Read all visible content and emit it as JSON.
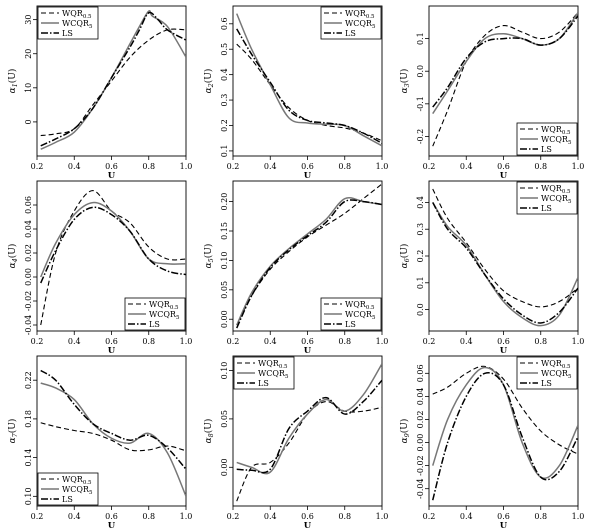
{
  "chart_data": [
    {
      "type": "line",
      "xlabel": "U",
      "ylabel": "α",
      "ylabel_sub": "1",
      "ylabel_suffix": "(U)",
      "xlim": [
        0.2,
        1.0
      ],
      "ylim": [
        -10,
        34
      ],
      "xticks": [
        0.2,
        0.4,
        0.6,
        0.8,
        1.0
      ],
      "xtick_labels": [
        "0.2",
        "0.4",
        "0.6",
        "0.8",
        "1.0"
      ],
      "yticks": [
        0,
        10,
        20,
        30
      ],
      "ytick_labels": [
        "0",
        "10",
        "20",
        "30"
      ],
      "legend_position": "top-left",
      "series": [
        {
          "name": "WQR",
          "sub": "0.5",
          "style": "dashed",
          "color": "#000000",
          "x": [
            0.22,
            0.3,
            0.4,
            0.5,
            0.6,
            0.7,
            0.8,
            0.9,
            1.0
          ],
          "y": [
            -4,
            -3.5,
            -2,
            5,
            12,
            19,
            24,
            27,
            27
          ]
        },
        {
          "name": "WCQR",
          "sub": "5",
          "style": "solid",
          "color": "#777777",
          "x": [
            0.22,
            0.3,
            0.4,
            0.5,
            0.6,
            0.7,
            0.75,
            0.8,
            0.82,
            0.9,
            1.0
          ],
          "y": [
            -8,
            -6,
            -3,
            4,
            13,
            23,
            28,
            32.5,
            31,
            28,
            19
          ]
        },
        {
          "name": "LS",
          "style": "dashdot",
          "color": "#000000",
          "x": [
            0.22,
            0.3,
            0.4,
            0.5,
            0.6,
            0.7,
            0.75,
            0.8,
            0.85,
            0.9,
            1.0
          ],
          "y": [
            -7,
            -5,
            -2,
            4,
            13,
            22,
            27,
            32,
            30,
            27,
            24
          ]
        }
      ]
    },
    {
      "type": "line",
      "xlabel": "U",
      "ylabel": "α",
      "ylabel_sub": "2",
      "ylabel_suffix": "(U)",
      "xlim": [
        0.2,
        1.0
      ],
      "ylim": [
        0.08,
        0.67
      ],
      "xticks": [
        0.2,
        0.4,
        0.6,
        0.8,
        1.0
      ],
      "xtick_labels": [
        "0.2",
        "0.4",
        "0.6",
        "0.8",
        "1.0"
      ],
      "yticks": [
        0.1,
        0.2,
        0.3,
        0.4,
        0.5,
        0.6
      ],
      "ytick_labels": [
        "0.1",
        "0.2",
        "0.3",
        "0.4",
        "0.5",
        "0.6"
      ],
      "legend_position": "top-right",
      "series": [
        {
          "name": "WQR",
          "sub": "0.5",
          "style": "dashed",
          "color": "#000000",
          "x": [
            0.22,
            0.3,
            0.4,
            0.5,
            0.6,
            0.7,
            0.8,
            0.9,
            1.0
          ],
          "y": [
            0.52,
            0.46,
            0.36,
            0.27,
            0.22,
            0.2,
            0.19,
            0.17,
            0.14
          ]
        },
        {
          "name": "WCQR",
          "sub": "5",
          "style": "solid",
          "color": "#777777",
          "x": [
            0.22,
            0.3,
            0.4,
            0.5,
            0.6,
            0.7,
            0.8,
            0.9,
            1.0
          ],
          "y": [
            0.64,
            0.5,
            0.36,
            0.23,
            0.21,
            0.205,
            0.2,
            0.16,
            0.12
          ]
        },
        {
          "name": "LS",
          "style": "dashdot",
          "color": "#000000",
          "x": [
            0.22,
            0.3,
            0.4,
            0.5,
            0.6,
            0.7,
            0.8,
            0.9,
            1.0
          ],
          "y": [
            0.58,
            0.48,
            0.37,
            0.26,
            0.22,
            0.21,
            0.2,
            0.17,
            0.13
          ]
        }
      ]
    },
    {
      "type": "line",
      "xlabel": "U",
      "ylabel": "α",
      "ylabel_sub": "3",
      "ylabel_suffix": "(U)",
      "xlim": [
        0.2,
        1.0
      ],
      "ylim": [
        -0.26,
        0.2
      ],
      "xticks": [
        0.2,
        0.4,
        0.6,
        0.8,
        1.0
      ],
      "xtick_labels": [
        "0.2",
        "0.4",
        "0.6",
        "0.8",
        "1.0"
      ],
      "yticks": [
        -0.2,
        -0.1,
        0.0,
        0.1
      ],
      "ytick_labels": [
        "-0.2",
        "-0.1",
        "0.0",
        "0.1"
      ],
      "legend_position": "bottom-right",
      "series": [
        {
          "name": "WQR",
          "sub": "0.5",
          "style": "dashed",
          "color": "#000000",
          "x": [
            0.22,
            0.3,
            0.4,
            0.5,
            0.6,
            0.7,
            0.8,
            0.9,
            1.0
          ],
          "y": [
            -0.23,
            -0.12,
            0.03,
            0.11,
            0.14,
            0.12,
            0.1,
            0.12,
            0.18
          ]
        },
        {
          "name": "WCQR",
          "sub": "5",
          "style": "solid",
          "color": "#777777",
          "x": [
            0.22,
            0.3,
            0.4,
            0.5,
            0.6,
            0.7,
            0.8,
            0.9,
            1.0
          ],
          "y": [
            -0.13,
            -0.06,
            0.03,
            0.1,
            0.115,
            0.1,
            0.08,
            0.1,
            0.18
          ]
        },
        {
          "name": "LS",
          "style": "dashdot",
          "color": "#000000",
          "x": [
            0.22,
            0.3,
            0.4,
            0.5,
            0.6,
            0.7,
            0.8,
            0.9,
            1.0
          ],
          "y": [
            -0.11,
            -0.05,
            0.04,
            0.09,
            0.1,
            0.1,
            0.08,
            0.1,
            0.17
          ]
        }
      ]
    },
    {
      "type": "line",
      "xlabel": "U",
      "ylabel": "α",
      "ylabel_sub": "4",
      "ylabel_suffix": "(U)",
      "xlim": [
        0.2,
        1.0
      ],
      "ylim": [
        -0.045,
        0.08
      ],
      "xticks": [
        0.2,
        0.4,
        0.6,
        0.8,
        1.0
      ],
      "xtick_labels": [
        "0.2",
        "0.4",
        "0.6",
        "0.8",
        "1.0"
      ],
      "yticks": [
        -0.04,
        -0.02,
        0.0,
        0.02,
        0.04,
        0.06
      ],
      "ytick_labels": [
        "-0.04",
        "-0.02",
        "0.00",
        "0.02",
        "0.04",
        "0.06"
      ],
      "legend_position": "bottom-right",
      "series": [
        {
          "name": "WQR",
          "sub": "0.5",
          "style": "dashed",
          "color": "#000000",
          "x": [
            0.22,
            0.3,
            0.4,
            0.5,
            0.6,
            0.7,
            0.8,
            0.9,
            1.0
          ],
          "y": [
            -0.04,
            0.02,
            0.055,
            0.072,
            0.055,
            0.045,
            0.025,
            0.015,
            0.015
          ]
        },
        {
          "name": "WCQR",
          "sub": "5",
          "style": "solid",
          "color": "#777777",
          "x": [
            0.22,
            0.3,
            0.4,
            0.5,
            0.6,
            0.7,
            0.8,
            0.9,
            1.0
          ],
          "y": [
            0.0,
            0.028,
            0.052,
            0.062,
            0.055,
            0.038,
            0.015,
            0.011,
            0.011
          ]
        },
        {
          "name": "LS",
          "style": "dashdot",
          "color": "#000000",
          "x": [
            0.22,
            0.3,
            0.4,
            0.5,
            0.6,
            0.7,
            0.8,
            0.9,
            1.0
          ],
          "y": [
            -0.005,
            0.022,
            0.048,
            0.058,
            0.052,
            0.038,
            0.015,
            0.005,
            0.002
          ]
        }
      ]
    },
    {
      "type": "line",
      "xlabel": "U",
      "ylabel": "α",
      "ylabel_sub": "5",
      "ylabel_suffix": "(U)",
      "xlim": [
        0.2,
        1.0
      ],
      "ylim": [
        -0.02,
        0.235
      ],
      "xticks": [
        0.2,
        0.4,
        0.6,
        0.8,
        1.0
      ],
      "xtick_labels": [
        "0.2",
        "0.4",
        "0.6",
        "0.8",
        "1.0"
      ],
      "yticks": [
        0.0,
        0.05,
        0.1,
        0.15,
        0.2
      ],
      "ytick_labels": [
        "0.00",
        "0.05",
        "0.10",
        "0.15",
        "0.20"
      ],
      "legend_position": "bottom-right",
      "series": [
        {
          "name": "WQR",
          "sub": "0.5",
          "style": "dashed",
          "color": "#000000",
          "x": [
            0.22,
            0.3,
            0.4,
            0.5,
            0.6,
            0.7,
            0.8,
            0.9,
            1.0
          ],
          "y": [
            -0.01,
            0.04,
            0.085,
            0.115,
            0.14,
            0.16,
            0.18,
            0.205,
            0.23
          ]
        },
        {
          "name": "WCQR",
          "sub": "5",
          "style": "solid",
          "color": "#777777",
          "x": [
            0.22,
            0.3,
            0.4,
            0.5,
            0.6,
            0.7,
            0.8,
            0.9,
            1.0
          ],
          "y": [
            -0.01,
            0.045,
            0.09,
            0.12,
            0.145,
            0.17,
            0.205,
            0.2,
            0.195
          ]
        },
        {
          "name": "LS",
          "style": "dashdot",
          "color": "#000000",
          "x": [
            0.22,
            0.3,
            0.4,
            0.5,
            0.6,
            0.7,
            0.8,
            0.9,
            1.0
          ],
          "y": [
            -0.015,
            0.04,
            0.088,
            0.118,
            0.142,
            0.165,
            0.2,
            0.2,
            0.195
          ]
        }
      ]
    },
    {
      "type": "line",
      "xlabel": "U",
      "ylabel": "α",
      "ylabel_sub": "6",
      "ylabel_suffix": "(U)",
      "xlim": [
        0.2,
        1.0
      ],
      "ylim": [
        -0.08,
        0.48
      ],
      "xticks": [
        0.2,
        0.4,
        0.6,
        0.8,
        1.0
      ],
      "xtick_labels": [
        "0.2",
        "0.4",
        "0.6",
        "0.8",
        "1.0"
      ],
      "yticks": [
        0.0,
        0.1,
        0.2,
        0.3,
        0.4
      ],
      "ytick_labels": [
        "0.0",
        "0.1",
        "0.2",
        "0.3",
        "0.4"
      ],
      "legend_position": "top-right",
      "series": [
        {
          "name": "WQR",
          "sub": "0.5",
          "style": "dashed",
          "color": "#000000",
          "x": [
            0.22,
            0.3,
            0.4,
            0.5,
            0.6,
            0.7,
            0.8,
            0.9,
            1.0
          ],
          "y": [
            0.45,
            0.34,
            0.25,
            0.15,
            0.07,
            0.03,
            0.01,
            0.03,
            0.08
          ]
        },
        {
          "name": "WCQR",
          "sub": "5",
          "style": "solid",
          "color": "#777777",
          "x": [
            0.22,
            0.3,
            0.4,
            0.5,
            0.6,
            0.7,
            0.8,
            0.9,
            1.0
          ],
          "y": [
            0.4,
            0.31,
            0.24,
            0.13,
            0.03,
            -0.03,
            -0.06,
            -0.02,
            0.12
          ]
        },
        {
          "name": "LS",
          "style": "dashdot",
          "color": "#000000",
          "x": [
            0.22,
            0.3,
            0.4,
            0.5,
            0.6,
            0.7,
            0.8,
            0.9,
            1.0
          ],
          "y": [
            0.4,
            0.3,
            0.23,
            0.13,
            0.04,
            -0.02,
            -0.05,
            -0.01,
            0.08
          ]
        }
      ]
    },
    {
      "type": "line",
      "xlabel": "U",
      "ylabel": "α",
      "ylabel_sub": "7",
      "ylabel_suffix": "(U)",
      "xlim": [
        0.2,
        1.0
      ],
      "ylim": [
        0.09,
        0.245
      ],
      "xticks": [
        0.2,
        0.4,
        0.6,
        0.8,
        1.0
      ],
      "xtick_labels": [
        "0.2",
        "0.4",
        "0.6",
        "0.8",
        "1.0"
      ],
      "yticks": [
        0.1,
        0.14,
        0.18,
        0.22
      ],
      "ytick_labels": [
        "0.10",
        "0.14",
        "0.18",
        "0.22"
      ],
      "legend_position": "bottom-left",
      "series": [
        {
          "name": "WQR",
          "sub": "0.5",
          "style": "dashed",
          "color": "#000000",
          "x": [
            0.22,
            0.3,
            0.4,
            0.5,
            0.6,
            0.7,
            0.8,
            0.9,
            1.0
          ],
          "y": [
            0.176,
            0.172,
            0.168,
            0.165,
            0.158,
            0.148,
            0.148,
            0.152,
            0.147
          ]
        },
        {
          "name": "WCQR",
          "sub": "5",
          "style": "solid",
          "color": "#777777",
          "x": [
            0.22,
            0.3,
            0.4,
            0.5,
            0.6,
            0.7,
            0.8,
            0.9,
            1.0
          ],
          "y": [
            0.217,
            0.212,
            0.2,
            0.175,
            0.16,
            0.155,
            0.165,
            0.145,
            0.1
          ]
        },
        {
          "name": "LS",
          "style": "dashdot",
          "color": "#000000",
          "x": [
            0.22,
            0.3,
            0.4,
            0.5,
            0.6,
            0.7,
            0.8,
            0.9,
            1.0
          ],
          "y": [
            0.23,
            0.22,
            0.195,
            0.175,
            0.165,
            0.158,
            0.163,
            0.15,
            0.128
          ]
        }
      ]
    },
    {
      "type": "line",
      "xlabel": "U",
      "ylabel": "α",
      "ylabel_sub": "8",
      "ylabel_suffix": "(U)",
      "xlim": [
        0.2,
        1.0
      ],
      "ylim": [
        -0.04,
        0.115
      ],
      "xticks": [
        0.2,
        0.4,
        0.6,
        0.8,
        1.0
      ],
      "xtick_labels": [
        "0.2",
        "0.4",
        "0.6",
        "0.8",
        "1.0"
      ],
      "yticks": [
        0.0,
        0.05,
        0.1
      ],
      "ytick_labels": [
        "0.00",
        "0.05",
        "0.10"
      ],
      "legend_position": "top-left",
      "series": [
        {
          "name": "WQR",
          "sub": "0.5",
          "style": "dashed",
          "color": "#000000",
          "x": [
            0.22,
            0.3,
            0.4,
            0.5,
            0.6,
            0.7,
            0.8,
            0.9,
            1.0
          ],
          "y": [
            -0.035,
            0.0,
            0.005,
            0.025,
            0.055,
            0.068,
            0.058,
            0.058,
            0.062
          ]
        },
        {
          "name": "WCQR",
          "sub": "5",
          "style": "solid",
          "color": "#777777",
          "x": [
            0.22,
            0.3,
            0.4,
            0.5,
            0.6,
            0.7,
            0.8,
            0.9,
            1.0
          ],
          "y": [
            0.005,
            0.0,
            -0.005,
            0.03,
            0.055,
            0.07,
            0.058,
            0.075,
            0.107
          ]
        },
        {
          "name": "LS",
          "style": "dashdot",
          "color": "#000000",
          "x": [
            0.22,
            0.3,
            0.4,
            0.5,
            0.6,
            0.7,
            0.8,
            0.9,
            1.0
          ],
          "y": [
            -0.002,
            -0.003,
            -0.002,
            0.04,
            0.058,
            0.072,
            0.055,
            0.068,
            0.09
          ]
        }
      ]
    },
    {
      "type": "line",
      "xlabel": "U",
      "ylabel": "α",
      "ylabel_sub": "9",
      "ylabel_suffix": "(U)",
      "xlim": [
        0.2,
        1.0
      ],
      "ylim": [
        -0.055,
        0.075
      ],
      "xticks": [
        0.2,
        0.4,
        0.6,
        0.8,
        1.0
      ],
      "xtick_labels": [
        "0.2",
        "0.4",
        "0.6",
        "0.8",
        "1.0"
      ],
      "yticks": [
        -0.04,
        -0.02,
        0.0,
        0.02,
        0.04,
        0.06
      ],
      "ytick_labels": [
        "-0.04",
        "-0.02",
        "0.00",
        "0.02",
        "0.04",
        "0.06"
      ],
      "legend_position": "top-right",
      "series": [
        {
          "name": "WQR",
          "sub": "0.5",
          "style": "dashed",
          "color": "#000000",
          "x": [
            0.22,
            0.3,
            0.4,
            0.5,
            0.6,
            0.7,
            0.8,
            0.9,
            1.0
          ],
          "y": [
            0.042,
            0.048,
            0.06,
            0.066,
            0.055,
            0.03,
            0.01,
            -0.002,
            -0.01
          ]
        },
        {
          "name": "WCQR",
          "sub": "5",
          "style": "solid",
          "color": "#777777",
          "x": [
            0.22,
            0.3,
            0.4,
            0.5,
            0.6,
            0.7,
            0.8,
            0.9,
            1.0
          ],
          "y": [
            -0.02,
            0.02,
            0.05,
            0.065,
            0.05,
            0.0,
            -0.03,
            -0.02,
            0.015
          ]
        },
        {
          "name": "LS",
          "style": "dashdot",
          "color": "#000000",
          "x": [
            0.22,
            0.3,
            0.4,
            0.5,
            0.6,
            0.7,
            0.8,
            0.9,
            1.0
          ],
          "y": [
            -0.05,
            0.0,
            0.04,
            0.06,
            0.05,
            0.005,
            -0.03,
            -0.025,
            0.005
          ]
        }
      ]
    }
  ]
}
